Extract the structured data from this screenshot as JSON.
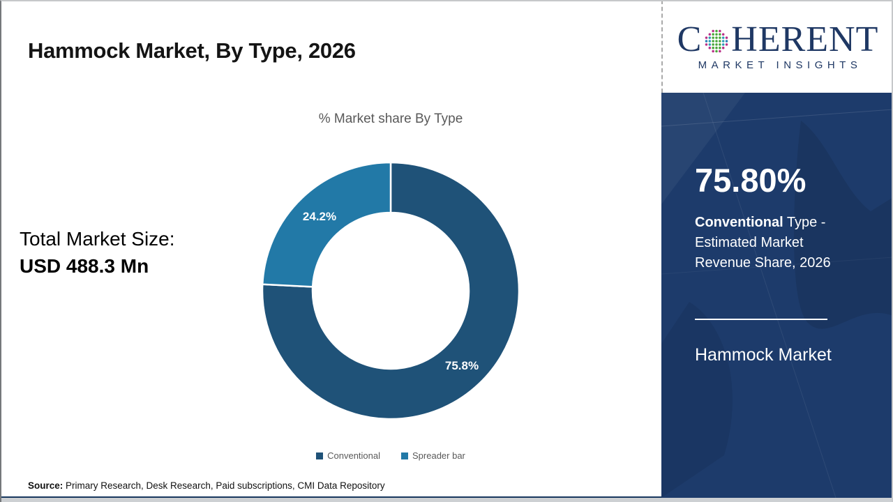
{
  "header": {
    "title": "Hammock Market, By Type, 2026"
  },
  "logo": {
    "word_start": "C",
    "word_end": "HERENT",
    "subtitle": "MARKET INSIGHTS",
    "brand_color": "#1f3864",
    "globe_colors": {
      "green": "#49a63a",
      "teal": "#2d9db5",
      "magenta": "#b93088",
      "outer_blue": "#2d7fb5"
    }
  },
  "left_panel": {
    "total_label": "Total Market Size:",
    "total_value": "USD 488.3 Mn"
  },
  "chart_data": {
    "type": "pie",
    "donut": true,
    "title": "% Market share By Type",
    "categories": [
      "Conventional",
      "Spreader bar"
    ],
    "values": [
      75.8,
      24.2
    ],
    "labels": [
      "75.8%",
      "24.2%"
    ],
    "colors": [
      "#1f5278",
      "#2279a7"
    ],
    "legend_position": "bottom",
    "outer_radius": 184,
    "inner_radius": 112,
    "start_angle_deg": 0,
    "direction": "clockwise"
  },
  "side_panel": {
    "bg_color": "#1d3b6b",
    "stat_value": "75.80%",
    "stat_desc_bold": "Conventional",
    "stat_desc_rest": " Type - Estimated Market Revenue Share, 2026",
    "market_name": "Hammock Market"
  },
  "footer": {
    "source_label": "Source:",
    "source_text": " Primary Research, Desk Research, Paid subscriptions, CMI Data Repository"
  }
}
